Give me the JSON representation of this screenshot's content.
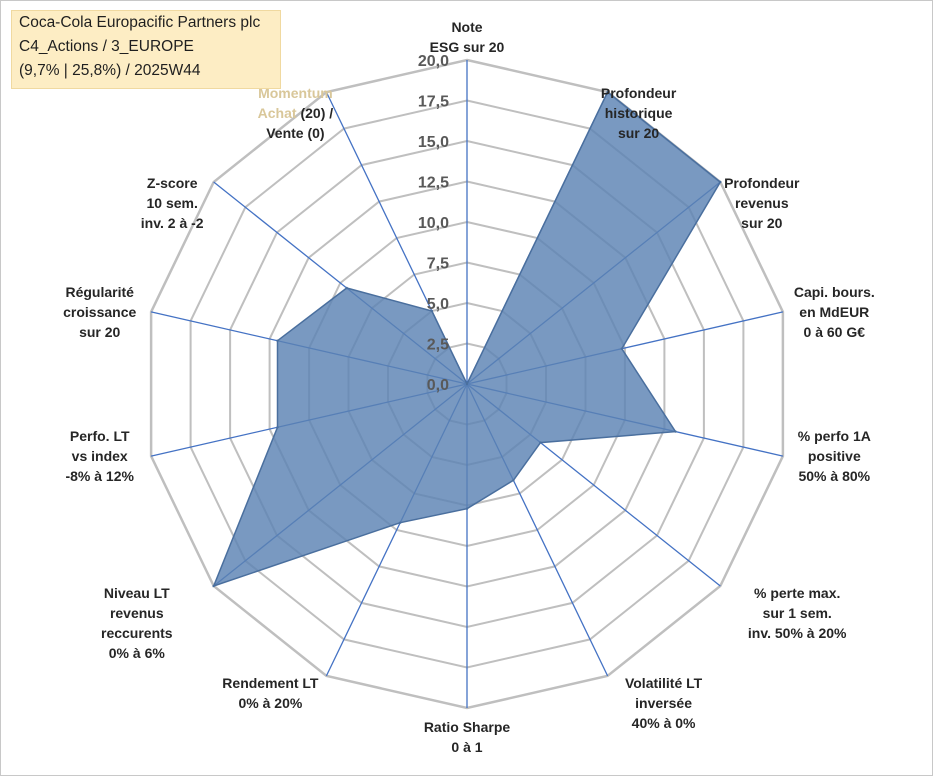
{
  "title": {
    "line1": "Coca-Cola Europacific Partners plc",
    "line2": "C4_Actions / 3_EUROPE",
    "line3": "(9,7% | 25,8%) / 2025W44"
  },
  "chart_data": {
    "type": "radar",
    "rmin": 0,
    "rmax": 20,
    "ticks": [
      "0,0",
      "2,5",
      "5,0",
      "7,5",
      "10,0",
      "12,5",
      "15,0",
      "17,5",
      "20,0"
    ],
    "axes": [
      {
        "label": [
          "Note",
          "ESG sur 20"
        ],
        "value": 0
      },
      {
        "label": [
          "Profondeur",
          "historique",
          "sur 20"
        ],
        "value": 20
      },
      {
        "label": [
          "Profondeur",
          "revenus",
          "sur 20"
        ],
        "value": 20
      },
      {
        "label": [
          "Capi. bours.",
          "en MdEUR",
          "0 à 60 G€"
        ],
        "value": 9.8
      },
      {
        "label": [
          "% perfo 1A",
          "positive",
          "50% à 80%"
        ],
        "value": 13.2
      },
      {
        "label": [
          "% perte max.",
          "sur 1 sem.",
          "inv. 50% à 20%"
        ],
        "value": 5.8
      },
      {
        "label": [
          "Volatilité LT",
          "inversée",
          "40% à 0%"
        ],
        "value": 6.6
      },
      {
        "label": [
          "Ratio Sharpe",
          "0 à 1"
        ],
        "value": 7.7
      },
      {
        "label": [
          "Rendement LT",
          "0% à 20%"
        ],
        "value": 9.5
      },
      {
        "label": [
          "Niveau LT",
          "revenus",
          "reccurents",
          "0% à 6%"
        ],
        "value": 20
      },
      {
        "label": [
          "Perfo. LT",
          "vs index",
          "-8% à 12%"
        ],
        "value": 12
      },
      {
        "label": [
          "Régularité",
          "croissance",
          "sur 20"
        ],
        "value": 12
      },
      {
        "label": [
          "Z-score",
          "10 sem.",
          "inv. 2 à -2"
        ],
        "value": 9.5
      },
      {
        "label": [
          "Momentum",
          "Achat (20) /",
          "Vente (0)"
        ],
        "value": 5
      }
    ],
    "colors": {
      "fill": "#5b83b3",
      "stroke": "#4a6f9e",
      "axis": "#4472c4",
      "grid": "#bfbfbf",
      "momentum_highlight": "#d9c79a"
    }
  }
}
